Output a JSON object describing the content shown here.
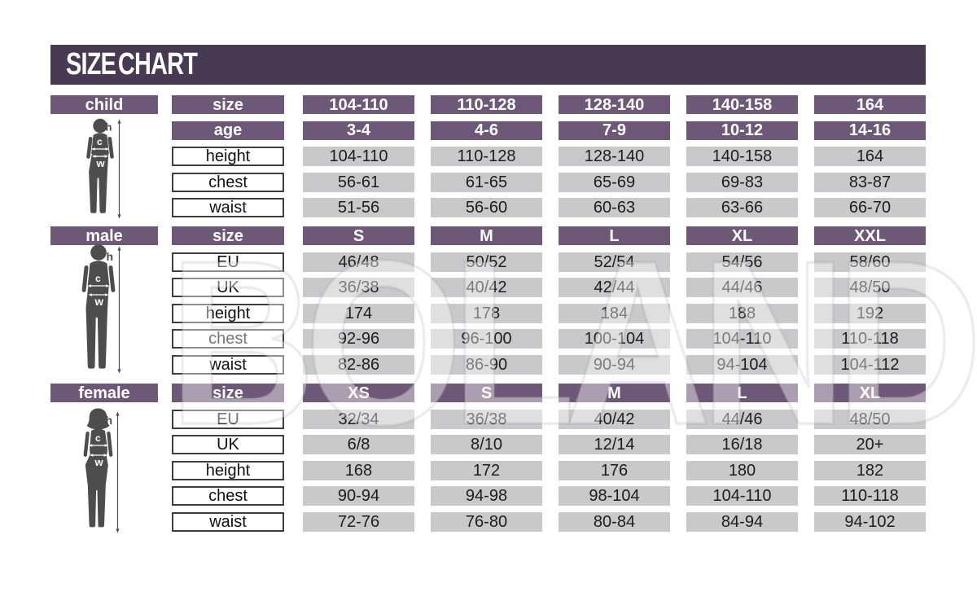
{
  "title": "SIZE CHART",
  "watermark": "BOLAND",
  "colors": {
    "title_bar": "#473a52",
    "header_purple": "#6d5977",
    "value_gray": "#c9c8ca",
    "label_border": "#3d3d3d",
    "silhouette": "#4d4d4d"
  },
  "measure_labels": {
    "height": "h",
    "chest": "c",
    "waist": "w"
  },
  "sections": [
    {
      "id": "child",
      "label": "child",
      "header_rows": [
        {
          "label": "size",
          "values": [
            "104-110",
            "110-128",
            "128-140",
            "140-158",
            "164"
          ]
        },
        {
          "label": "age",
          "values": [
            "3-4",
            "4-6",
            "7-9",
            "10-12",
            "14-16"
          ]
        }
      ],
      "data_rows": [
        {
          "label": "height",
          "values": [
            "104-110",
            "110-128",
            "128-140",
            "140-158",
            "164"
          ]
        },
        {
          "label": "chest",
          "values": [
            "56-61",
            "61-65",
            "65-69",
            "69-83",
            "83-87"
          ]
        },
        {
          "label": "waist",
          "values": [
            "51-56",
            "56-60",
            "60-63",
            "63-66",
            "66-70"
          ]
        }
      ]
    },
    {
      "id": "male",
      "label": "male",
      "header_rows": [
        {
          "label": "size",
          "values": [
            "S",
            "M",
            "L",
            "XL",
            "XXL"
          ]
        }
      ],
      "data_rows": [
        {
          "label": "EU",
          "values": [
            "46/48",
            "50/52",
            "52/54",
            "54/56",
            "58/60"
          ]
        },
        {
          "label": "UK",
          "values": [
            "36/38",
            "40/42",
            "42/44",
            "44/46",
            "48/50"
          ]
        },
        {
          "label": "height",
          "values": [
            "174",
            "178",
            "184",
            "188",
            "192"
          ]
        },
        {
          "label": "chest",
          "values": [
            "92-96",
            "96-100",
            "100-104",
            "104-110",
            "110-118"
          ]
        },
        {
          "label": "waist",
          "values": [
            "82-86",
            "86-90",
            "90-94",
            "94-104",
            "104-112"
          ]
        }
      ]
    },
    {
      "id": "female",
      "label": "female",
      "header_rows": [
        {
          "label": "size",
          "values": [
            "XS",
            "S",
            "M",
            "L",
            "XL"
          ]
        }
      ],
      "data_rows": [
        {
          "label": "EU",
          "values": [
            "32/34",
            "36/38",
            "40/42",
            "44/46",
            "48/50"
          ]
        },
        {
          "label": "UK",
          "values": [
            "6/8",
            "8/10",
            "12/14",
            "16/18",
            "20+"
          ]
        },
        {
          "label": "height",
          "values": [
            "168",
            "172",
            "176",
            "180",
            "182"
          ]
        },
        {
          "label": "chest",
          "values": [
            "90-94",
            "94-98",
            "98-104",
            "104-110",
            "110-118"
          ]
        },
        {
          "label": "waist",
          "values": [
            "72-76",
            "76-80",
            "80-84",
            "84-94",
            "94-102"
          ]
        }
      ]
    }
  ]
}
